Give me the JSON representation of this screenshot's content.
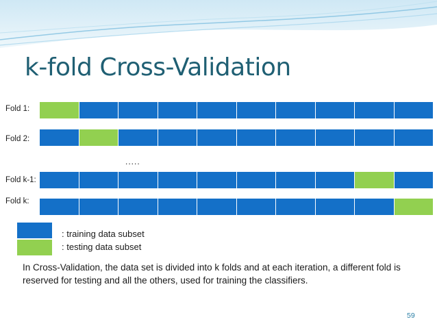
{
  "slide": {
    "title": "k-fold Cross-Validation",
    "page_number": "59",
    "ellipsis": ".....",
    "description": "In Cross-Validation, the data set is divided into k folds and at each iteration, a different fold is reserved for testing and all the others, used for training the classifiers."
  },
  "colors": {
    "training": "#1470c8",
    "testing": "#92d050"
  },
  "legend": {
    "training_label": ": training data subset",
    "testing_label": ": testing data subset"
  },
  "folds": [
    {
      "label": "Fold 1:",
      "segments": [
        "test",
        "train",
        "train",
        "train",
        "train",
        "train",
        "train",
        "train",
        "train",
        "train"
      ]
    },
    {
      "label": "Fold 2:",
      "segments": [
        "train",
        "test",
        "train",
        "train",
        "train",
        "train",
        "train",
        "train",
        "train",
        "train"
      ]
    },
    {
      "label": "Fold k-1:",
      "segments": [
        "train",
        "train",
        "train",
        "train",
        "train",
        "train",
        "train",
        "train",
        "test",
        "train"
      ]
    },
    {
      "label": "Fold k:",
      "segments": [
        "train",
        "train",
        "train",
        "train",
        "train",
        "train",
        "train",
        "train",
        "train",
        "test"
      ]
    }
  ]
}
